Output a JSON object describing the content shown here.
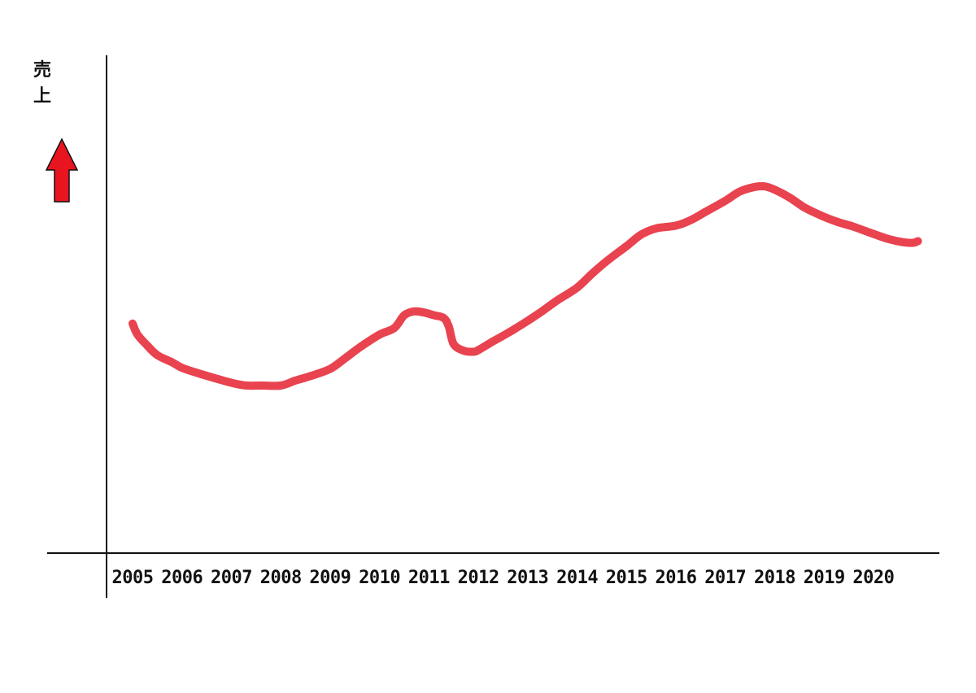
{
  "chart_data": {
    "type": "line",
    "title": "",
    "xlabel": "",
    "ylabel": "売上",
    "ylabel_chars": [
      "売",
      "上"
    ],
    "categories": [
      "2005",
      "2006",
      "2007",
      "2008",
      "2009",
      "2010",
      "2011",
      "2012",
      "2013",
      "2014",
      "2015",
      "2016",
      "2017",
      "2018",
      "2019",
      "2020"
    ],
    "x": [
      2005.0,
      2005.1,
      2005.3,
      2005.5,
      2005.8,
      2006.0,
      2006.3,
      2006.6,
      2007.0,
      2007.3,
      2007.6,
      2008.0,
      2008.3,
      2008.6,
      2009.0,
      2009.3,
      2009.6,
      2010.0,
      2010.3,
      2010.5,
      2010.7,
      2010.9,
      2011.1,
      2011.3,
      2011.4,
      2011.5,
      2011.7,
      2011.9,
      2012.0,
      2012.3,
      2012.6,
      2013.0,
      2013.3,
      2013.6,
      2014.0,
      2014.3,
      2014.6,
      2015.0,
      2015.3,
      2015.6,
      2016.0,
      2016.3,
      2016.6,
      2017.0,
      2017.3,
      2017.6,
      2017.8,
      2018.0,
      2018.3,
      2018.6,
      2019.0,
      2019.3,
      2019.6,
      2020.0,
      2020.3,
      2020.6,
      2020.8,
      2020.9
    ],
    "values": [
      41.5,
      39.5,
      37.5,
      35.8,
      34.5,
      33.5,
      32.6,
      31.8,
      30.8,
      30.3,
      30.3,
      30.3,
      31.2,
      32.0,
      33.3,
      35.2,
      37.2,
      39.5,
      40.7,
      43.0,
      43.7,
      43.5,
      43.0,
      42.5,
      41.0,
      37.8,
      36.6,
      36.4,
      36.7,
      38.3,
      39.8,
      42.0,
      43.8,
      45.7,
      48.0,
      50.5,
      52.8,
      55.5,
      57.6,
      58.7,
      59.2,
      60.2,
      61.7,
      63.7,
      65.4,
      66.2,
      66.3,
      65.7,
      64.3,
      62.5,
      60.8,
      59.8,
      59.0,
      57.7,
      56.8,
      56.2,
      56.1,
      56.4
    ],
    "ylim": [
      0,
      100
    ],
    "grid": false,
    "legend": "none",
    "line_color": "#e8434f",
    "axis_color": "#111111",
    "arrow_color": "#e8141f",
    "arrow_direction": "up"
  }
}
